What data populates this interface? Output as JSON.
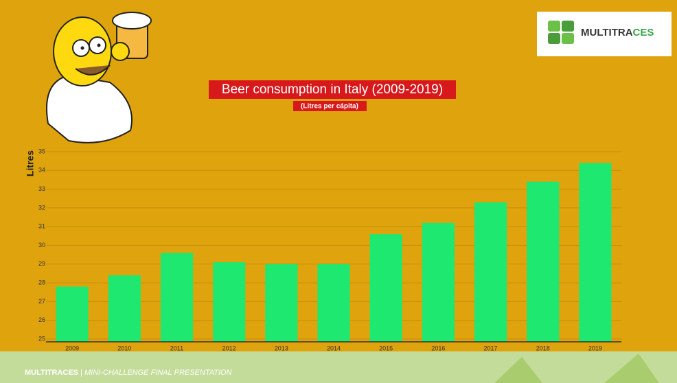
{
  "chart_data": {
    "type": "bar",
    "title": "Beer consumption in Italy (2009-2019)",
    "subtitle": "(Litres per cápita)",
    "y_label": "Litres",
    "categories": [
      "2009",
      "2010",
      "2011",
      "2012",
      "2013",
      "2014",
      "2015",
      "2016",
      "2017",
      "2018",
      "2019"
    ],
    "values": [
      27.8,
      28.4,
      29.6,
      29.1,
      29.0,
      29.0,
      30.6,
      31.2,
      32.3,
      33.4,
      34.4
    ],
    "color": "#1ee86f",
    "ylim": [
      25,
      35
    ],
    "yticks": [
      25,
      26,
      27,
      28,
      29,
      30,
      31,
      32,
      33,
      34,
      35
    ],
    "grid": true
  },
  "logo": {
    "text_main": "MULTITRA",
    "text_accent": "CES"
  },
  "footer": {
    "brand": "MULTITRACES",
    "separator": "|",
    "caption": "MINI-CHALLENGE FINAL PRESENTATION"
  }
}
